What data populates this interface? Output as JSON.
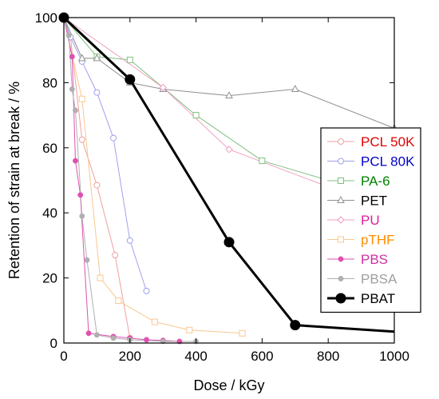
{
  "chart_data": {
    "type": "line",
    "title": "",
    "xlabel": "Dose / kGy",
    "ylabel": "Retention of strain at break / %",
    "xlim": [
      0,
      1000
    ],
    "ylim": [
      0,
      100
    ],
    "xticks": [
      0,
      200,
      400,
      600,
      800,
      1000
    ],
    "yticks": [
      0,
      20,
      40,
      60,
      80,
      100
    ],
    "grid": false,
    "legend_position": "right",
    "series": [
      {
        "name": "PCL 50K",
        "color": "#f0a0a0",
        "label_color": "#e00000",
        "marker": "circle-open",
        "x": [
          0,
          20,
          55,
          100,
          155,
          200
        ],
        "y": [
          100,
          94,
          62.5,
          48.5,
          27,
          1.5
        ]
      },
      {
        "name": "PCL 80K",
        "color": "#a0a0ee",
        "label_color": "#0000cc",
        "marker": "circle-open",
        "x": [
          0,
          20,
          55,
          100,
          150,
          200,
          250
        ],
        "y": [
          100,
          94,
          86.5,
          77,
          63,
          31.5,
          16
        ]
      },
      {
        "name": "PA-6",
        "color": "#80c080",
        "label_color": "#008000",
        "marker": "square-open",
        "x": [
          0,
          100,
          200,
          400,
          600,
          800
        ],
        "y": [
          100,
          88,
          87,
          70,
          56,
          50
        ]
      },
      {
        "name": "PET",
        "color": "#909090",
        "label_color": "#000000",
        "marker": "triangle-open",
        "x": [
          0,
          55,
          100,
          200,
          300,
          500,
          700,
          1000
        ],
        "y": [
          100,
          87.5,
          87.5,
          80,
          78,
          76,
          78,
          66
        ]
      },
      {
        "name": "PU",
        "color": "#f0a0c0",
        "label_color": "#e0209a",
        "marker": "diamond-open",
        "x": [
          0,
          300,
          500,
          800
        ],
        "y": [
          100,
          78.5,
          59.5,
          48
        ]
      },
      {
        "name": "pTHF",
        "color": "#f8c890",
        "label_color": "#ff8c00",
        "marker": "square-open",
        "x": [
          0,
          55,
          110,
          165,
          275,
          380,
          540
        ],
        "y": [
          100,
          75,
          20,
          13,
          6.5,
          4,
          3
        ]
      },
      {
        "name": "PBS",
        "color": "#e050b0",
        "label_color": "#d030a0",
        "marker": "circle-filled",
        "x": [
          0,
          25,
          35,
          50,
          75,
          150,
          200,
          250,
          300,
          350
        ],
        "y": [
          100,
          88,
          56,
          45.5,
          3,
          2,
          1.5,
          1,
          0.8,
          0.5
        ]
      },
      {
        "name": "PBSA",
        "color": "#b0b0b0",
        "label_color": "#a0a0a0",
        "marker": "circle-filled",
        "x": [
          0,
          15,
          25,
          35,
          55,
          70,
          100,
          150,
          200,
          300,
          400
        ],
        "y": [
          100,
          94.5,
          78,
          71.5,
          39,
          25.5,
          2.5,
          1.5,
          1,
          0.5,
          0.5
        ]
      },
      {
        "name": "PBAT",
        "color": "#000000",
        "label_color": "#000000",
        "marker": "circle-filled-large",
        "x": [
          0,
          200,
          500,
          700,
          1000
        ],
        "y": [
          100,
          81,
          31,
          5.5,
          3.5
        ]
      }
    ]
  }
}
